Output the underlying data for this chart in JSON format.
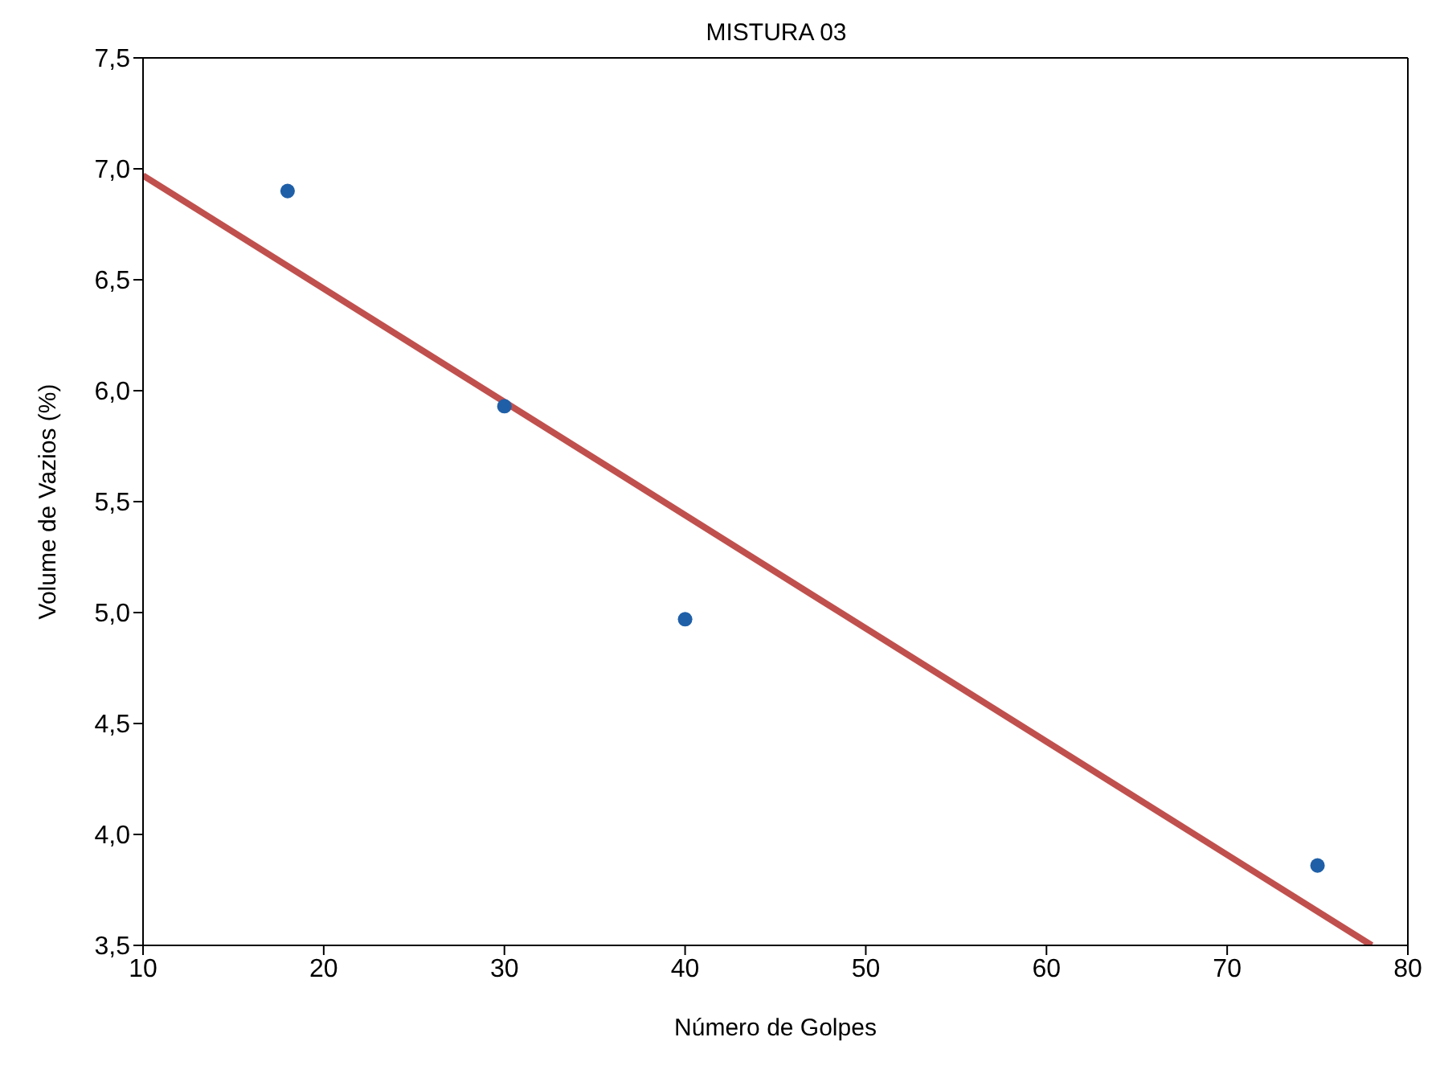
{
  "chart_data": {
    "type": "scatter",
    "title": "MISTURA 03",
    "xlabel": "Número de Golpes",
    "ylabel": "Volume de Vazios (%)",
    "series": [
      {
        "color": "#1f5fa8",
        "marker": "circle",
        "x": [
          18,
          30,
          40,
          75
        ],
        "values": [
          6.9,
          5.93,
          4.97,
          3.86
        ]
      },
      {
        "type": "line",
        "color": "#c0504d",
        "marker": "none",
        "line_style": "solid",
        "x": [
          10,
          78
        ],
        "values": [
          6.97,
          3.5
        ]
      }
    ],
    "xlim": [
      10,
      80
    ],
    "xticks": [
      10,
      20,
      30,
      40,
      50,
      60,
      70,
      80
    ],
    "ylim": [
      3.5,
      7.5
    ],
    "yticks": [
      {
        "value": 3.5,
        "label": "3,5"
      },
      {
        "value": 4,
        "label": "4,0"
      },
      {
        "value": 4.5,
        "label": "4,5"
      },
      {
        "value": 5,
        "label": "5,0"
      },
      {
        "value": 5.5,
        "label": "5,5"
      },
      {
        "value": 6,
        "label": "6,0"
      },
      {
        "value": 6.5,
        "label": "6,5"
      },
      {
        "value": 7,
        "label": "7,0"
      },
      {
        "value": 7.5,
        "label": "7,5"
      }
    ]
  }
}
